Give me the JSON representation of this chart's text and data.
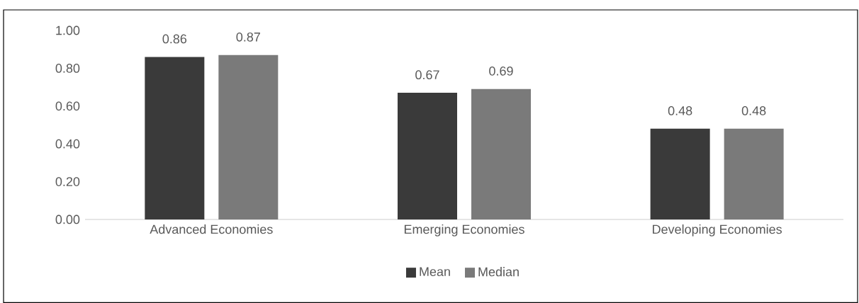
{
  "chart_data": {
    "type": "bar",
    "categories": [
      "Advanced Economies",
      "Emerging Economies",
      "Developing Economies"
    ],
    "series": [
      {
        "name": "Mean",
        "color": "#3a3a3a",
        "values": [
          0.86,
          0.67,
          0.48
        ]
      },
      {
        "name": "Median",
        "color": "#7a7a7a",
        "values": [
          0.87,
          0.69,
          0.48
        ]
      }
    ],
    "ylim": [
      0,
      1
    ],
    "yticks": [
      {
        "value": 0,
        "label": "0.00"
      },
      {
        "value": 0.2,
        "label": "0.20"
      },
      {
        "value": 0.4,
        "label": "0.40"
      },
      {
        "value": 0.6,
        "label": "0.60"
      },
      {
        "value": 0.8,
        "label": "0.80"
      },
      {
        "value": 1,
        "label": "1.00"
      }
    ],
    "data_labels": true,
    "grid": false,
    "legend": "bottom"
  }
}
